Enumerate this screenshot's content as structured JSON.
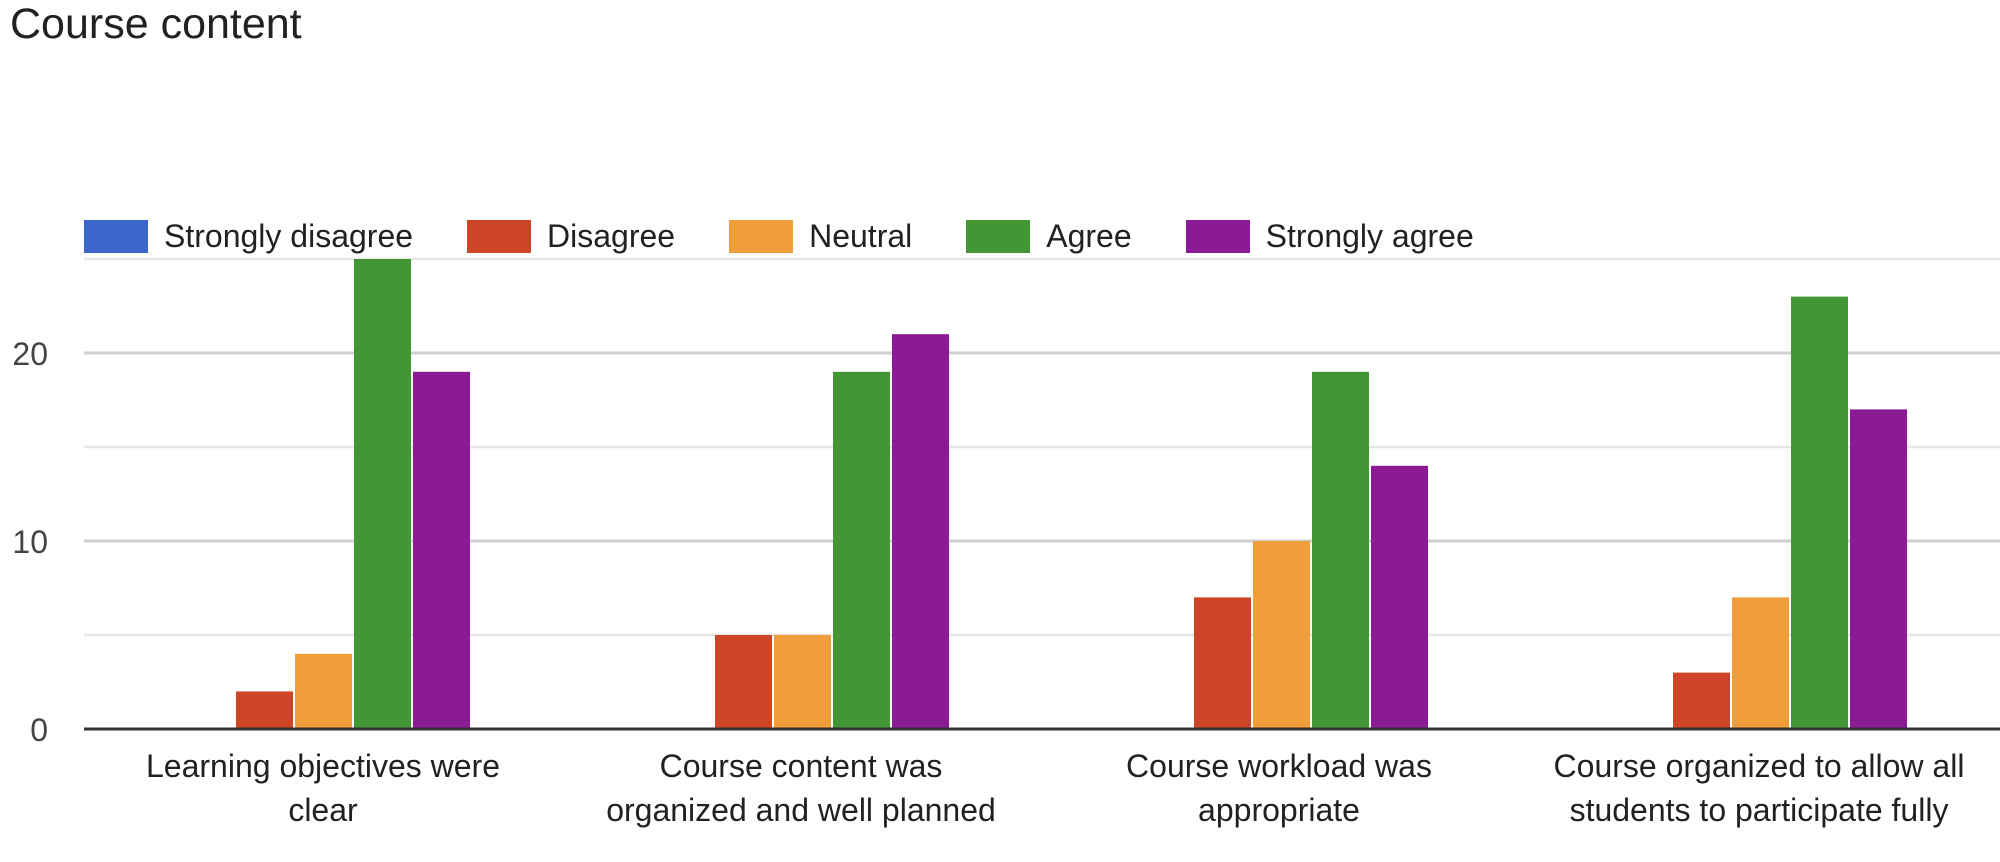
{
  "chart_data": {
    "type": "bar",
    "title": "Course content",
    "categories": [
      [
        "Learning objectives were",
        "clear"
      ],
      [
        "Course content was",
        "organized and well planned"
      ],
      [
        "Course workload was",
        "appropriate"
      ],
      [
        "Course organized to allow all",
        "students to participate fully"
      ]
    ],
    "series": [
      {
        "name": "Strongly disagree",
        "color": "#3c66cc",
        "values": [
          0,
          0,
          0,
          0
        ]
      },
      {
        "name": "Disagree",
        "color": "#cc4527",
        "values": [
          2,
          5,
          7,
          3
        ]
      },
      {
        "name": "Neutral",
        "color": "#f09e39",
        "values": [
          4,
          5,
          10,
          7
        ]
      },
      {
        "name": "Agree",
        "color": "#439634",
        "values": [
          25,
          19,
          19,
          23
        ]
      },
      {
        "name": "Strongly agree",
        "color": "#8b1a95",
        "values": [
          19,
          21,
          14,
          17
        ]
      }
    ],
    "ylim": [
      0,
      25
    ],
    "yticks": [
      0,
      10,
      20
    ],
    "xlabel": "",
    "ylabel": "",
    "legend": "top",
    "grid": true
  }
}
